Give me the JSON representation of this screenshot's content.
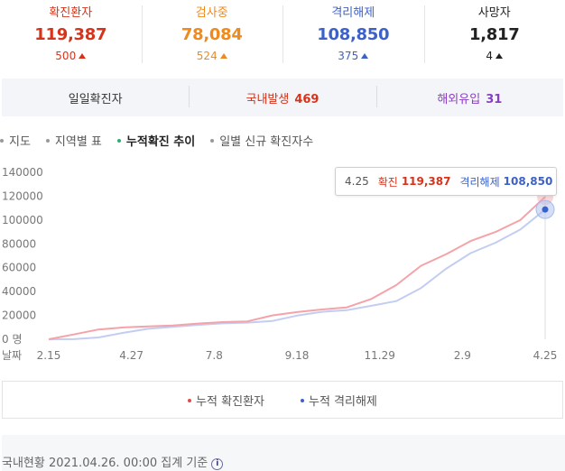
{
  "stats": [
    {
      "label": "확진환자",
      "value": "119,387",
      "delta": "500",
      "color": "#d6331a"
    },
    {
      "label": "검사중",
      "value": "78,084",
      "delta": "524",
      "color": "#ee8a1e"
    },
    {
      "label": "격리해제",
      "value": "108,850",
      "delta": "375",
      "color": "#3c61c9"
    },
    {
      "label": "사망자",
      "value": "1,817",
      "delta": "4",
      "color": "#222222"
    }
  ],
  "daily": {
    "label": "일일확진자",
    "domestic_label": "국내발생",
    "domestic_value": "469",
    "overseas_label": "해외유입",
    "overseas_value": "31"
  },
  "tabs": [
    {
      "label": "지도",
      "active": false
    },
    {
      "label": "지역별 표",
      "active": false
    },
    {
      "label": "누적확진 추이",
      "active": true
    },
    {
      "label": "일별 신규 확진자수",
      "active": false
    }
  ],
  "tooltip": {
    "date": "4.25",
    "confirmed_label": "확진",
    "confirmed_value": "119,387",
    "released_label": "격리해제",
    "released_value": "108,850"
  },
  "legend": {
    "confirmed": "누적 확진환자",
    "released": "누적 격리해제"
  },
  "footer": {
    "text": "국내현황 2021.04.26. 00:00 집계 기준",
    "info_icon": "info-icon"
  },
  "colors": {
    "confirmed_line": "#f4a3a8",
    "released_line": "#c3cdf2",
    "confirmed_dot": "#e34b4b",
    "released_dot": "#3c61c9"
  },
  "chart_data": {
    "type": "line",
    "ylabel": "명",
    "xlabel": "날짜",
    "ylim": [
      0,
      140000
    ],
    "y_ticks": [
      0,
      20000,
      40000,
      60000,
      80000,
      100000,
      120000,
      140000
    ],
    "y_tick_labels": [
      "0 명",
      "20000",
      "40000",
      "60000",
      "80000",
      "100000",
      "120000",
      "140000"
    ],
    "x_tick_labels": [
      "2.15",
      "4.27",
      "7.8",
      "9.18",
      "11.29",
      "2.9",
      "4.25"
    ],
    "x": [
      "2.15",
      "3.1",
      "3.15",
      "4.1",
      "4.27",
      "6.1",
      "7.8",
      "8.1",
      "8.15",
      "9.1",
      "9.18",
      "10.15",
      "11.1",
      "11.29",
      "12.15",
      "12.31",
      "1.15",
      "2.9",
      "3.1",
      "3.25",
      "4.25"
    ],
    "series": [
      {
        "name": "누적 확진환자",
        "values": [
          28,
          4000,
          8200,
          9900,
          10750,
          11500,
          13200,
          14400,
          15000,
          20000,
          22800,
          25000,
          26700,
          33800,
          45400,
          61700,
          71200,
          82400,
          90000,
          100000,
          119387
        ]
      },
      {
        "name": "누적 격리해제",
        "values": [
          10,
          50,
          1500,
          5400,
          8800,
          10400,
          12000,
          13300,
          13900,
          15300,
          19800,
          23000,
          24400,
          28100,
          32000,
          43000,
          59000,
          72300,
          81000,
          92000,
          108850
        ]
      }
    ]
  }
}
